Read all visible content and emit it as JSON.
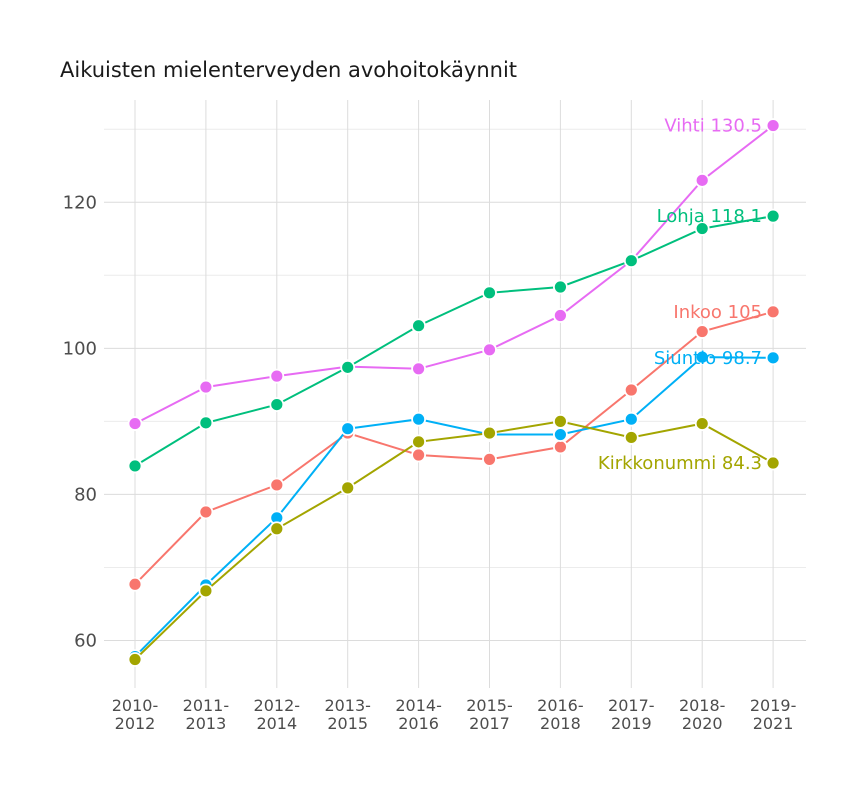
{
  "chart_data": {
    "type": "line",
    "title": "Aikuisten mielenterveyden avohoitokäynnit",
    "xlabel": "",
    "ylabel": "",
    "categories": [
      [
        "2010-",
        "2012"
      ],
      [
        "2011-",
        "2013"
      ],
      [
        "2012-",
        "2014"
      ],
      [
        "2013-",
        "2015"
      ],
      [
        "2014-",
        "2016"
      ],
      [
        "2015-",
        "2017"
      ],
      [
        "2016-",
        "2018"
      ],
      [
        "2017-",
        "2019"
      ],
      [
        "2018-",
        "2020"
      ],
      [
        "2019-",
        "2021"
      ]
    ],
    "ylim": [
      53.5,
      134
    ],
    "yticks": [
      60,
      80,
      100,
      120
    ],
    "grid": true,
    "series": [
      {
        "name": "Vihti",
        "color": "#E76BF3",
        "end_label": "Vihti 130.5",
        "values": [
          89.7,
          94.7,
          96.2,
          97.5,
          97.2,
          99.8,
          104.5,
          112.0,
          123.0,
          130.5
        ]
      },
      {
        "name": "Lohja",
        "color": "#00BF7D",
        "end_label": "Lohja 118.1",
        "values": [
          83.9,
          89.8,
          92.3,
          97.4,
          103.1,
          107.6,
          108.4,
          112.0,
          116.4,
          118.1
        ]
      },
      {
        "name": "Inkoo",
        "color": "#F8766D",
        "end_label": "Inkoo 105",
        "values": [
          67.7,
          77.6,
          81.3,
          88.4,
          85.4,
          84.8,
          86.5,
          94.3,
          102.3,
          105.0
        ]
      },
      {
        "name": "Siuntio",
        "color": "#00B0F6",
        "end_label": "Siuntio 98.7",
        "values": [
          57.8,
          67.6,
          76.8,
          89.0,
          90.3,
          88.2,
          88.2,
          90.3,
          98.8,
          98.7
        ]
      },
      {
        "name": "Kirkkonummi",
        "color": "#A3A500",
        "end_label": "Kirkkonummi 84.3",
        "values": [
          57.4,
          66.8,
          75.3,
          80.9,
          87.2,
          88.4,
          90.0,
          87.8,
          89.7,
          84.3
        ]
      }
    ]
  }
}
